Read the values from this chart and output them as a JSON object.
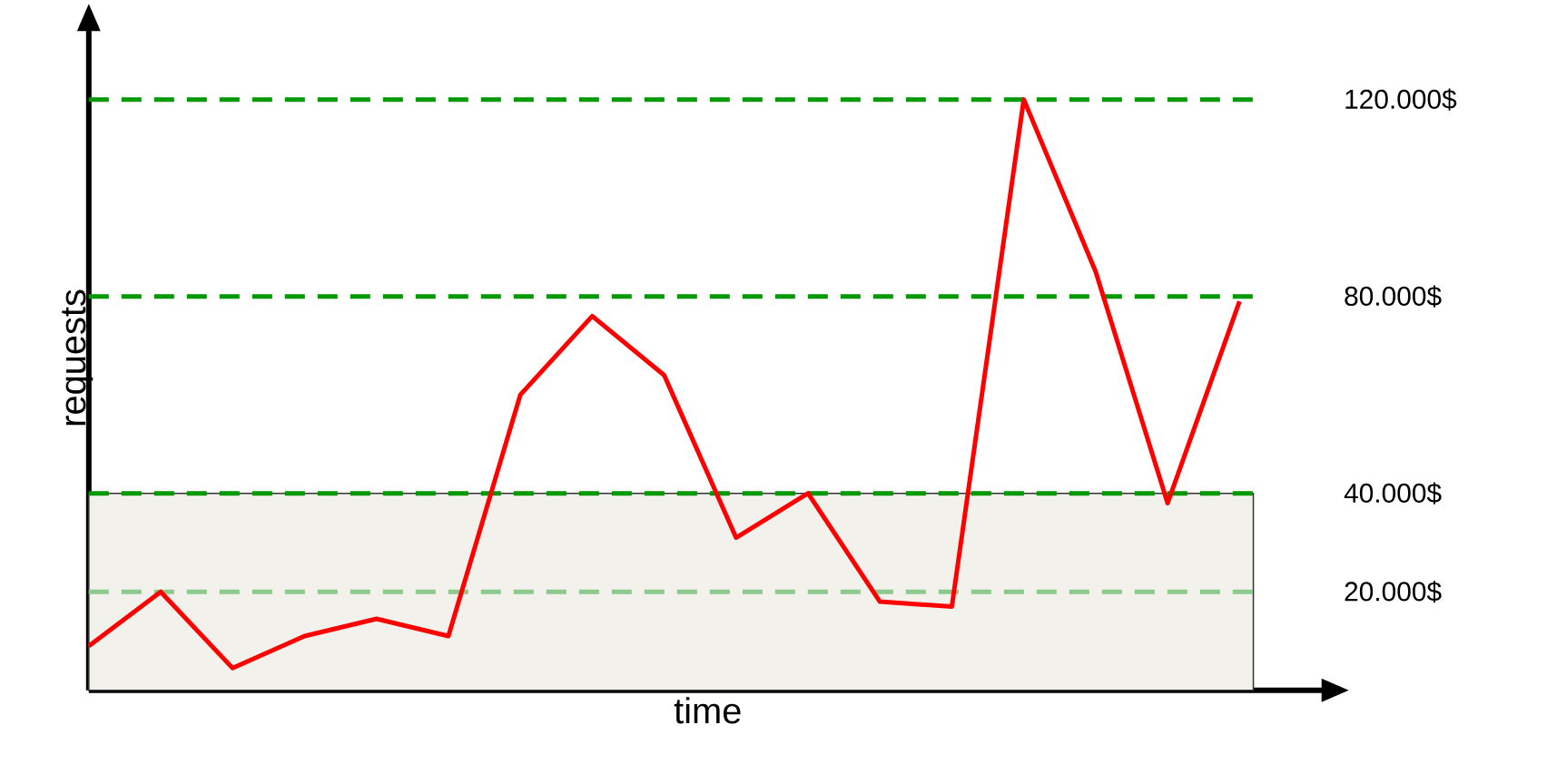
{
  "chart_data": {
    "type": "line",
    "xlabel": "time",
    "ylabel": "requests",
    "tick_labels": "y",
    "categories": [
      null,
      null,
      null,
      null,
      null,
      null,
      null,
      null,
      null,
      null,
      null,
      null,
      null,
      null,
      null,
      null,
      null
    ],
    "ylim": [
      0,
      135000
    ],
    "yticks": [
      {
        "value": 20000,
        "label": "20.000$"
      },
      {
        "value": 40000,
        "label": "40.000$"
      },
      {
        "value": 80000,
        "label": "80.000$"
      },
      {
        "value": 120000,
        "label": "120.000$"
      }
    ],
    "series": [
      {
        "color": "#ff0000",
        "values": [
          9000,
          20000,
          4500,
          11000,
          14500,
          11000,
          60000,
          76000,
          64000,
          31000,
          40000,
          18000,
          17000,
          120000,
          85000,
          38000,
          79000
        ]
      }
    ],
    "ref_lines": [
      {
        "axis": "y",
        "value": 120000,
        "color": "#009900",
        "line_style": "dashed"
      },
      {
        "axis": "y",
        "value": 80000,
        "color": "#009900",
        "line_style": "dashed"
      },
      {
        "axis": "y",
        "value": 40000,
        "color": "#009900",
        "line_style": "dashed"
      },
      {
        "axis": "y",
        "value": 20000,
        "color": "#8cc98c",
        "line_style": "dashed"
      }
    ],
    "bands": [
      {
        "axis": "y",
        "from": 0,
        "to": 40000,
        "color": "#f2f1ec"
      }
    ]
  }
}
